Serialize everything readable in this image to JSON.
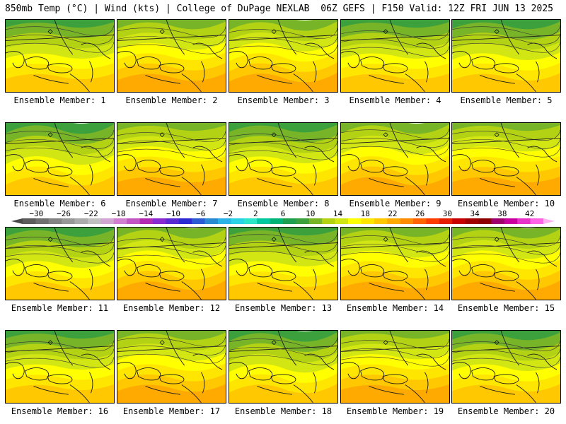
{
  "header": {
    "left_title": "850mb Temp (°C) | Wind (kts) | College of DuPage NEXLAB",
    "right_title": "06Z GEFS | F150 Valid: 12Z FRI JUN 13 2025"
  },
  "panels": [
    {
      "label": "Ensemble Member: 1",
      "warmth": 0.55
    },
    {
      "label": "Ensemble Member: 2",
      "warmth": 0.7
    },
    {
      "label": "Ensemble Member: 3",
      "warmth": 0.75
    },
    {
      "label": "Ensemble Member: 4",
      "warmth": 0.55
    },
    {
      "label": "Ensemble Member: 5",
      "warmth": 0.4
    },
    {
      "label": "Ensemble Member: 6",
      "warmth": 0.5
    },
    {
      "label": "Ensemble Member: 7",
      "warmth": 0.65
    },
    {
      "label": "Ensemble Member: 8",
      "warmth": 0.5
    },
    {
      "label": "Ensemble Member: 9",
      "warmth": 0.7
    },
    {
      "label": "Ensemble Member: 10",
      "warmth": 0.8
    },
    {
      "label": "Ensemble Member: 11",
      "warmth": 0.6
    },
    {
      "label": "Ensemble Member: 12",
      "warmth": 0.7
    },
    {
      "label": "Ensemble Member: 13",
      "warmth": 0.45
    },
    {
      "label": "Ensemble Member: 14",
      "warmth": 0.8
    },
    {
      "label": "Ensemble Member: 15",
      "warmth": 0.7
    },
    {
      "label": "Ensemble Member: 16",
      "warmth": 0.5
    },
    {
      "label": "Ensemble Member: 17",
      "warmth": 0.65
    },
    {
      "label": "Ensemble Member: 18",
      "warmth": 0.45
    },
    {
      "label": "Ensemble Member: 19",
      "warmth": 0.65
    },
    {
      "label": "Ensemble Member: 20",
      "warmth": 0.5
    }
  ],
  "colorbar": {
    "ticks": [
      "−30",
      "−26",
      "−22",
      "−18",
      "−14",
      "−10",
      "−6",
      "−2",
      "2",
      "6",
      "10",
      "14",
      "18",
      "22",
      "26",
      "30",
      "34",
      "38",
      "42"
    ],
    "colors": [
      "#5c5c5c",
      "#707070",
      "#848484",
      "#989898",
      "#acacac",
      "#c0c0c0",
      "#d2a6d2",
      "#d27fd2",
      "#c455c4",
      "#b22bb2",
      "#8a2bd2",
      "#5a2bd2",
      "#2b2bd2",
      "#2b5ad2",
      "#2b8ad2",
      "#2bb2e6",
      "#2bd2e6",
      "#2be6c8",
      "#00c8a0",
      "#00b478",
      "#1ea050",
      "#3ca03c",
      "#78b428",
      "#b4d214",
      "#d2e614",
      "#ffff00",
      "#ffe600",
      "#ffc800",
      "#ffaa00",
      "#ff8c00",
      "#ff6400",
      "#ff3c00",
      "#e61e00",
      "#c80000",
      "#a00000",
      "#8c0000",
      "#a0006e",
      "#c800a0",
      "#e632c8",
      "#ff64e6"
    ],
    "field_colors": [
      "#00b478",
      "#1ea050",
      "#3ca03c",
      "#78b428",
      "#b4d214",
      "#d2e614",
      "#ffff00",
      "#ffe600",
      "#ffc800",
      "#ffaa00",
      "#ff8c00"
    ]
  }
}
